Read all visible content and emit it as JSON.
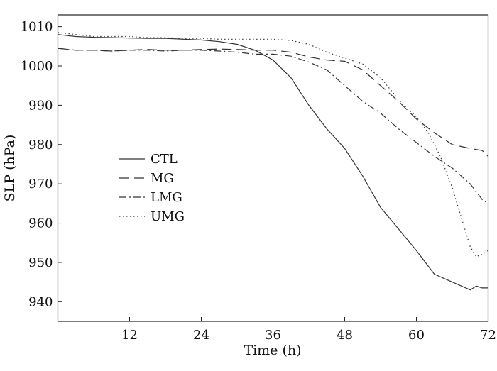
{
  "chart_data": {
    "type": "line",
    "title": "",
    "xlabel": "Time (h)",
    "ylabel": "SLP (hPa)",
    "xlim": [
      0,
      72
    ],
    "ylim": [
      935,
      1013
    ],
    "xticks": [
      12,
      24,
      36,
      48,
      60,
      72
    ],
    "yticks": [
      940,
      950,
      960,
      970,
      980,
      990,
      1000,
      1010
    ],
    "legend_position": "center-left",
    "series": [
      {
        "name": "CTL",
        "style": "solid",
        "x": [
          0,
          3,
          6,
          9,
          12,
          15,
          18,
          21,
          24,
          27,
          30,
          33,
          36,
          39,
          42,
          45,
          48,
          51,
          54,
          57,
          60,
          63,
          66,
          69,
          70,
          71,
          72
        ],
        "y": [
          1008,
          1007.5,
          1007.3,
          1007.2,
          1007.1,
          1007,
          1007,
          1006.8,
          1006.6,
          1006.2,
          1005.5,
          1004,
          1001.5,
          997,
          990,
          984,
          979,
          972,
          964,
          958.5,
          953,
          947,
          945,
          943,
          944,
          943.5,
          943.5
        ]
      },
      {
        "name": "MG",
        "style": "dashed",
        "x": [
          0,
          3,
          6,
          9,
          12,
          15,
          18,
          21,
          24,
          27,
          30,
          33,
          36,
          39,
          42,
          45,
          48,
          51,
          54,
          57,
          60,
          63,
          66,
          69,
          71,
          72
        ],
        "y": [
          1004.5,
          1004,
          1004,
          1003.8,
          1004,
          1004.2,
          1004,
          1004,
          1004.2,
          1004.3,
          1004.2,
          1004,
          1004,
          1003.5,
          1002.3,
          1001.5,
          1001.2,
          999,
          995,
          991,
          986.5,
          983,
          980,
          979,
          978.5,
          977
        ]
      },
      {
        "name": "LMG",
        "style": "dashdot",
        "x": [
          0,
          3,
          6,
          9,
          12,
          15,
          18,
          21,
          24,
          27,
          30,
          33,
          36,
          39,
          42,
          45,
          48,
          51,
          54,
          57,
          60,
          63,
          66,
          69,
          71,
          72
        ],
        "y": [
          1004.5,
          1004,
          1004,
          1003.8,
          1004,
          1004,
          1003.8,
          1004,
          1004,
          1003.8,
          1003.5,
          1003,
          1003,
          1002.5,
          1001,
          999,
          995,
          991,
          988,
          984,
          980.5,
          977,
          974,
          970,
          966,
          965
        ]
      },
      {
        "name": "UMG",
        "style": "dotted",
        "x": [
          0,
          3,
          6,
          9,
          12,
          15,
          18,
          21,
          24,
          27,
          30,
          33,
          36,
          39,
          42,
          45,
          48,
          51,
          54,
          57,
          60,
          62,
          64,
          66,
          68,
          69,
          70,
          71,
          72
        ],
        "y": [
          1008.5,
          1008,
          1007.5,
          1007.5,
          1007.5,
          1007.2,
          1007.2,
          1007,
          1007,
          1006.8,
          1006.8,
          1006.8,
          1006.8,
          1006.5,
          1005.5,
          1003.5,
          1002,
          1000.5,
          997,
          991.5,
          987,
          983,
          977,
          969,
          959,
          954,
          951.5,
          952,
          953
        ]
      }
    ]
  }
}
